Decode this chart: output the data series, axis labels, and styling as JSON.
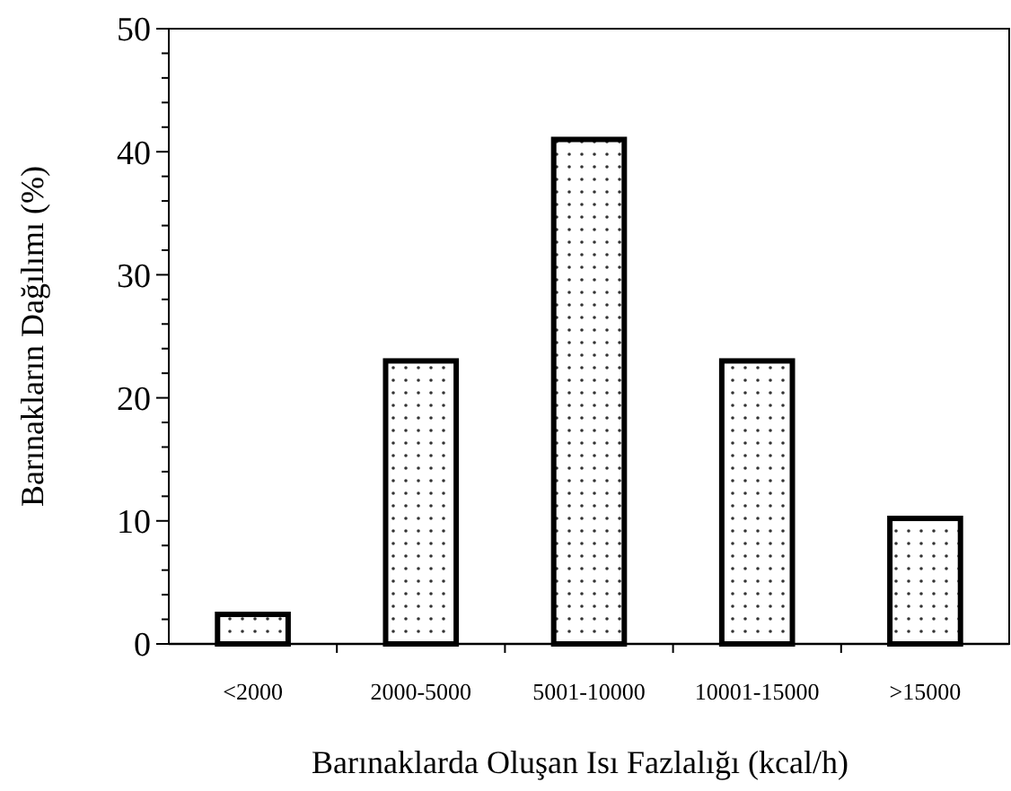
{
  "chart_data": {
    "type": "bar",
    "xlabel": "Barınaklarda Oluşan Isı Fazlalığı (kcal/h)",
    "ylabel": "Barınakların Dağılımı (%)",
    "categories": [
      "<2000",
      "2000-5000",
      "5001-10000",
      "10001-15000",
      ">15000"
    ],
    "values": [
      2.4,
      23,
      41,
      23,
      10.2
    ],
    "color": "#ffffff",
    "ylim": [
      0,
      50
    ],
    "yticks": [
      0,
      {
        "value": 2,
        "label": null
      },
      {
        "value": 4,
        "label": null
      },
      {
        "value": 6,
        "label": null
      },
      {
        "value": 8,
        "label": null
      },
      10,
      {
        "value": 12,
        "label": null
      },
      {
        "value": 14,
        "label": null
      },
      {
        "value": 16,
        "label": null
      },
      {
        "value": 18,
        "label": null
      },
      20,
      {
        "value": 22,
        "label": null
      },
      {
        "value": 24,
        "label": null
      },
      {
        "value": 26,
        "label": null
      },
      {
        "value": 28,
        "label": null
      },
      30,
      {
        "value": 32,
        "label": null
      },
      {
        "value": 34,
        "label": null
      },
      {
        "value": 36,
        "label": null
      },
      {
        "value": 38,
        "label": null
      },
      40,
      {
        "value": 42,
        "label": null
      },
      {
        "value": 44,
        "label": null
      },
      {
        "value": 46,
        "label": null
      },
      {
        "value": 48,
        "label": null
      },
      50
    ],
    "grid": false
  }
}
